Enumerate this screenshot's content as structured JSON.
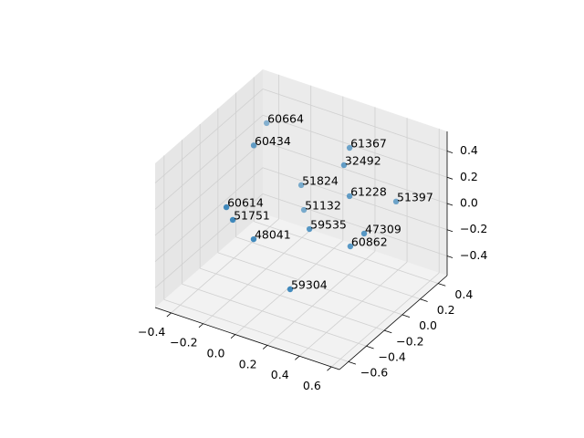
{
  "chart_data": {
    "type": "scatter3d",
    "color": "#1f77b4",
    "labels": [
      "60664",
      "60434",
      "61367",
      "32492",
      "51824",
      "61228",
      "51397",
      "60614",
      "51132",
      "51751",
      "59535",
      "47309",
      "48041",
      "60862",
      "59304"
    ],
    "x": [
      -0.409,
      -0.288,
      0.243,
      0.275,
      -0.126,
      0.31,
      0.533,
      -0.257,
      -0.109,
      -0.217,
      0.127,
      0.468,
      -0.087,
      0.382,
      0.141
    ],
    "y": [
      0.38,
      0.02,
      0.14,
      0.02,
      0.26,
      0.02,
      0.14,
      -0.34,
      0.26,
      -0.34,
      -0.1,
      -0.1,
      -0.34,
      -0.1,
      -0.34
    ],
    "z": [
      0.249,
      0.344,
      0.472,
      0.425,
      -0.036,
      0.203,
      0.182,
      0.1,
      -0.218,
      0.02,
      -0.052,
      0.054,
      -0.074,
      -0.079,
      -0.362
    ],
    "xlim": [
      -0.5,
      0.65
    ],
    "ylim": [
      -0.7,
      0.5
    ],
    "zlim": [
      -0.55,
      0.55
    ],
    "xticks": [
      {
        "value": -0.4,
        "label": "−0.4"
      },
      {
        "value": -0.2,
        "label": "−0.2"
      },
      {
        "value": 0,
        "label": "0.0"
      },
      0.2,
      0.4,
      0.6
    ],
    "yticks": [
      {
        "value": -0.6,
        "label": "−0.6"
      },
      {
        "value": -0.4,
        "label": "−0.4"
      },
      {
        "value": -0.2,
        "label": "−0.2"
      },
      {
        "value": 0,
        "label": "0.0"
      },
      0.2,
      0.4
    ],
    "zticks": [
      {
        "value": -0.4,
        "label": "−0.4"
      },
      {
        "value": -0.2,
        "label": "−0.2"
      },
      {
        "value": 0,
        "label": "0.0"
      },
      0.2,
      0.4
    ],
    "grid": true
  }
}
